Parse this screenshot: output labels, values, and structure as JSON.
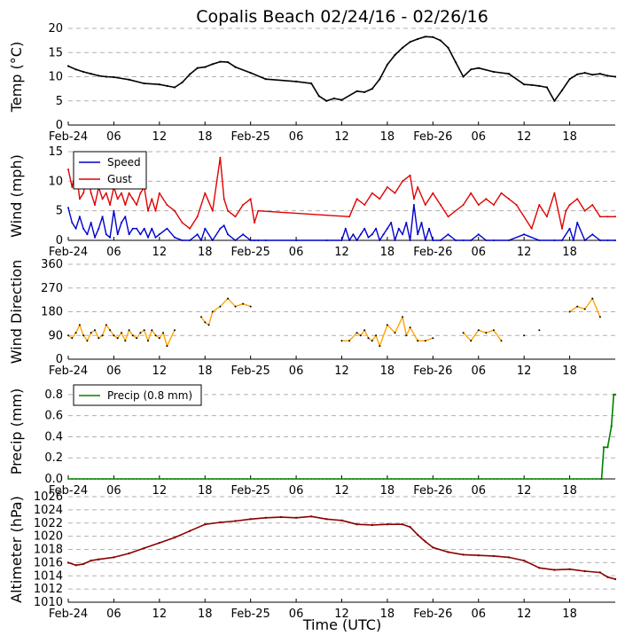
{
  "title": "Copalis Beach 02/24/16 - 02/26/16",
  "xlabel": "Time (UTC)",
  "time_ticks": [
    "Feb-24",
    "06",
    "12",
    "18",
    "Feb-25",
    "06",
    "12",
    "18",
    "Feb-26",
    "06",
    "12",
    "18"
  ],
  "colors": {
    "temp": "#000000",
    "speed": "#0000cc",
    "gust": "#e00000",
    "direction": "#ffa500",
    "precip": "#008000",
    "altimeter": "#8b0000",
    "grid": "#b0b0b0"
  },
  "chart_data": [
    {
      "type": "line",
      "id": "temp",
      "ylabel": "Temp (°C)",
      "ylim": [
        0,
        20
      ],
      "yticks": [
        "0",
        "5",
        "10",
        "15",
        "20"
      ],
      "grid": true,
      "x_hours": [
        0,
        1,
        2,
        3,
        4,
        5,
        6,
        8,
        10,
        12,
        13,
        14,
        15,
        16,
        17,
        18,
        19,
        20,
        21,
        22,
        24,
        26,
        30,
        32,
        33,
        34,
        35,
        36,
        38,
        39,
        40,
        41,
        42,
        43,
        44,
        45,
        46,
        47,
        48,
        49,
        50,
        51,
        52,
        53,
        54,
        56,
        58,
        60,
        61,
        62,
        63,
        64,
        65,
        66,
        67,
        68,
        69,
        70,
        71,
        72
      ],
      "series": [
        {
          "name": "Temp",
          "values": [
            12.2,
            11.5,
            11.0,
            10.6,
            10.2,
            10.0,
            9.9,
            9.4,
            8.6,
            8.4,
            8.1,
            7.8,
            8.8,
            10.5,
            11.8,
            12.0,
            12.6,
            13.1,
            13.0,
            12.0,
            10.8,
            9.5,
            9.0,
            8.6,
            6.0,
            5.0,
            5.5,
            5.2,
            7.0,
            6.8,
            7.5,
            9.5,
            12.5,
            14.5,
            16.0,
            17.2,
            17.8,
            18.3,
            18.2,
            17.5,
            16.0,
            13.0,
            10.0,
            11.5,
            11.8,
            11.0,
            10.6,
            8.4,
            8.3,
            8.1,
            7.8,
            5.0,
            7.2,
            9.5,
            10.5,
            10.8,
            10.4,
            10.6,
            10.2,
            10.0
          ]
        }
      ]
    },
    {
      "type": "line",
      "id": "wind",
      "ylabel": "Wind (mph)",
      "ylim": [
        0,
        15
      ],
      "yticks": [
        "0",
        "5",
        "10",
        "15"
      ],
      "grid": true,
      "legend": {
        "position": "top-left",
        "entries": [
          "Speed",
          "Gust"
        ]
      },
      "series": [
        {
          "name": "Speed",
          "x_hours": [
            0,
            0.5,
            1,
            1.5,
            2,
            2.5,
            3,
            3.5,
            4,
            4.5,
            5,
            5.5,
            6,
            6.5,
            7,
            7.5,
            8,
            8.5,
            9,
            9.5,
            10,
            10.5,
            11,
            11.5,
            12,
            13,
            14,
            15,
            16,
            17,
            17.5,
            18,
            19,
            20,
            20.5,
            21,
            22,
            23,
            24,
            24.5,
            25,
            26,
            30,
            34,
            36,
            36.5,
            37,
            37.5,
            38,
            38.5,
            39,
            39.5,
            40,
            40.5,
            41,
            41.5,
            42,
            42.5,
            43,
            43.5,
            44,
            44.5,
            45,
            45.5,
            46,
            46.5,
            47,
            47.5,
            48,
            49,
            50,
            51,
            52,
            53,
            54,
            55,
            56,
            58,
            60,
            62,
            64,
            65,
            66,
            66.5,
            67,
            68,
            69,
            70,
            71,
            72
          ],
          "values": [
            5.5,
            3,
            2,
            4,
            2,
            1,
            3,
            0.5,
            2,
            4,
            1,
            0.5,
            5,
            1,
            3,
            4,
            1,
            2,
            2,
            1,
            2,
            0.5,
            2,
            0.5,
            1,
            2,
            0.5,
            0,
            0,
            1,
            0,
            2,
            0,
            2,
            2.5,
            1,
            0,
            1,
            0,
            0,
            0,
            0,
            0,
            0,
            0,
            2,
            0,
            1,
            0,
            1,
            2,
            0.5,
            1,
            2,
            0,
            1,
            2,
            3,
            0,
            2,
            1,
            3,
            0,
            6,
            1,
            3,
            0,
            2,
            0,
            0,
            1,
            0,
            0,
            0,
            1,
            0,
            0,
            0,
            1,
            0,
            0,
            0,
            2,
            0,
            3,
            0,
            1,
            0,
            0,
            0
          ]
        },
        {
          "name": "Gust",
          "x_hours": [
            0,
            0.5,
            1,
            1.5,
            2,
            2.5,
            3,
            3.5,
            4,
            4.5,
            5,
            5.5,
            6,
            6.5,
            7,
            7.5,
            8,
            8.5,
            9,
            9.5,
            10,
            10.5,
            11,
            11.5,
            12,
            13,
            14,
            15,
            16,
            17,
            18,
            19,
            20,
            20.5,
            21,
            22,
            23,
            24,
            24.5,
            25,
            37,
            38,
            39,
            40,
            41,
            42,
            43,
            44,
            45,
            45.5,
            46,
            47,
            48,
            49,
            50,
            52,
            53,
            54,
            55,
            56,
            57,
            58,
            59,
            61,
            62,
            63,
            64,
            65,
            65.5,
            66,
            67,
            68,
            69,
            70,
            71,
            72
          ],
          "values": [
            12,
            9,
            12,
            7,
            8,
            11,
            8,
            6,
            9,
            7,
            8,
            6,
            9,
            7,
            8,
            6,
            8,
            7,
            6,
            8,
            9,
            5,
            7,
            5,
            8,
            6,
            5,
            3,
            2,
            4,
            8,
            5,
            14,
            7,
            5,
            4,
            6,
            7,
            3,
            5,
            4,
            7,
            6,
            8,
            7,
            9,
            8,
            10,
            11,
            7,
            9,
            6,
            8,
            6,
            4,
            6,
            8,
            6,
            7,
            6,
            8,
            7,
            6,
            2,
            6,
            4,
            8,
            2,
            5,
            6,
            7,
            5,
            6,
            4,
            4,
            4
          ]
        }
      ]
    },
    {
      "type": "scatter",
      "id": "direction",
      "ylabel": "Wind Direction",
      "ylim": [
        0,
        360
      ],
      "yticks": [
        "0",
        "90",
        "180",
        "270",
        "360"
      ],
      "grid": true,
      "x_hours": [
        0,
        0.5,
        1,
        1.5,
        2,
        2.5,
        3,
        3.5,
        4,
        4.5,
        5,
        5.5,
        6,
        6.5,
        7,
        7.5,
        8,
        8.5,
        9,
        9.5,
        10,
        10.5,
        11,
        11.5,
        12,
        12.5,
        13,
        14,
        17.5,
        18,
        18.5,
        19,
        20,
        21,
        22,
        23,
        24,
        36,
        37,
        38,
        38.5,
        39,
        39.5,
        40,
        40.5,
        41,
        42,
        43,
        44,
        44.5,
        45,
        46,
        47,
        48,
        52,
        53,
        54,
        55,
        56,
        57,
        60,
        62,
        66,
        67,
        68,
        69,
        70
      ],
      "series": [
        {
          "name": "Direction",
          "values": [
            90,
            80,
            100,
            130,
            90,
            70,
            100,
            110,
            80,
            90,
            130,
            110,
            90,
            80,
            100,
            70,
            110,
            90,
            80,
            100,
            110,
            70,
            110,
            90,
            80,
            100,
            50,
            110,
            160,
            140,
            130,
            180,
            200,
            230,
            200,
            210,
            200,
            70,
            70,
            100,
            90,
            110,
            80,
            70,
            90,
            50,
            130,
            100,
            160,
            90,
            120,
            70,
            70,
            80,
            100,
            70,
            110,
            100,
            110,
            70,
            90,
            110,
            180,
            200,
            190,
            230,
            160
          ]
        }
      ]
    },
    {
      "type": "line",
      "id": "precip",
      "ylabel": "Precip (mm)",
      "ylim": [
        0,
        0.9
      ],
      "yticks": [
        "0.0",
        "0.2",
        "0.4",
        "0.6",
        "0.8"
      ],
      "grid": true,
      "legend": {
        "position": "top-left",
        "entries": [
          "Precip (0.8 mm)"
        ]
      },
      "x_hours": [
        0,
        70.2,
        70.5,
        71,
        71.5,
        71.8,
        72
      ],
      "series": [
        {
          "name": "Precip (0.8 mm)",
          "values": [
            0,
            0,
            0.3,
            0.3,
            0.5,
            0.8,
            0.8
          ]
        }
      ]
    },
    {
      "type": "line",
      "id": "altimeter",
      "ylabel": "Altimeter (hPa)",
      "ylim": [
        1010,
        1026
      ],
      "yticks": [
        "1010",
        "1012",
        "1014",
        "1016",
        "1018",
        "1020",
        "1022",
        "1024",
        "1026"
      ],
      "grid": true,
      "x_hours": [
        0,
        1,
        2,
        3,
        4,
        6,
        8,
        10,
        12,
        14,
        16,
        18,
        20,
        22,
        24,
        26,
        28,
        30,
        32,
        34,
        36,
        38,
        40,
        42,
        44,
        45,
        46,
        47,
        48,
        50,
        52,
        54,
        56,
        58,
        60,
        62,
        64,
        66,
        68,
        70,
        71,
        72
      ],
      "series": [
        {
          "name": "Altimeter",
          "values": [
            1016,
            1015.6,
            1015.8,
            1016.3,
            1016.5,
            1016.8,
            1017.4,
            1018.2,
            1019,
            1019.8,
            1020.8,
            1021.8,
            1022.1,
            1022.3,
            1022.6,
            1022.8,
            1022.9,
            1022.8,
            1023,
            1022.6,
            1022.4,
            1021.8,
            1021.7,
            1021.8,
            1021.8,
            1021.4,
            1020.2,
            1019.2,
            1018.3,
            1017.6,
            1017.2,
            1017.1,
            1017,
            1016.8,
            1016.3,
            1015.2,
            1014.9,
            1015,
            1014.7,
            1014.5,
            1013.8,
            1013.5
          ]
        }
      ]
    }
  ]
}
